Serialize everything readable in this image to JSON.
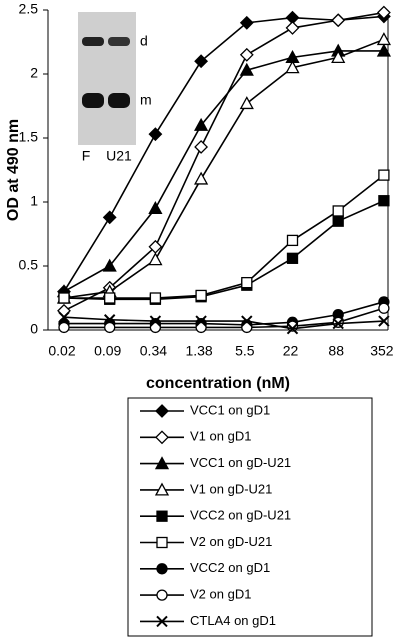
{
  "chart_data": {
    "type": "line",
    "y_label": "OD at 490 nm",
    "x_label": "concentration (nM)",
    "categories": [
      "0.02",
      "0.09",
      "0.34",
      "1.38",
      "5.5",
      "22",
      "88",
      "352"
    ],
    "ylim": [
      0,
      2.5
    ],
    "yticks": [
      0,
      0.5,
      1,
      1.5,
      2,
      2.5
    ],
    "grid": false,
    "legend": "bottom",
    "series": [
      {
        "name": "VCC1 on gD1",
        "color": "#000000",
        "marker": "diamond",
        "filled": true,
        "values": [
          0.3,
          0.88,
          1.53,
          2.1,
          2.4,
          2.44,
          2.42,
          2.45
        ]
      },
      {
        "name": "V1 on gD1",
        "color": "#000000",
        "marker": "diamond",
        "filled": false,
        "values": [
          0.15,
          0.33,
          0.65,
          1.43,
          2.15,
          2.36,
          2.42,
          2.48
        ]
      },
      {
        "name": "VCC1 on gD-U21",
        "color": "#000000",
        "marker": "triangle",
        "filled": true,
        "values": [
          0.3,
          0.5,
          0.95,
          1.6,
          2.03,
          2.13,
          2.18,
          2.18
        ]
      },
      {
        "name": "V1 on gD-U21",
        "color": "#000000",
        "marker": "triangle",
        "filled": false,
        "values": [
          0.25,
          0.3,
          0.55,
          1.18,
          1.77,
          2.05,
          2.13,
          2.27
        ]
      },
      {
        "name": "VCC2 on gD-U21",
        "color": "#000000",
        "marker": "square",
        "filled": true,
        "values": [
          0.25,
          0.24,
          0.24,
          0.26,
          0.35,
          0.56,
          0.85,
          1.01
        ]
      },
      {
        "name": "V2 on gD-U21",
        "color": "#000000",
        "marker": "square",
        "filled": false,
        "values": [
          0.25,
          0.25,
          0.25,
          0.27,
          0.37,
          0.7,
          0.93,
          1.21
        ]
      },
      {
        "name": "VCC2 on gD1",
        "color": "#000000",
        "marker": "circle",
        "filled": true,
        "values": [
          0.05,
          0.05,
          0.05,
          0.05,
          0.04,
          0.06,
          0.12,
          0.22
        ]
      },
      {
        "name": "V2 on gD1",
        "color": "#000000",
        "marker": "circle",
        "filled": false,
        "values": [
          0.02,
          0.02,
          0.02,
          0.02,
          0.02,
          0.03,
          0.06,
          0.17
        ]
      },
      {
        "name": "CTLA4 on gD1",
        "color": "#000000",
        "marker": "x",
        "filled": false,
        "values": [
          0.1,
          0.08,
          0.07,
          0.07,
          0.07,
          0.01,
          0.05,
          0.07
        ]
      }
    ],
    "inset": {
      "band_labels": [
        "d",
        "m"
      ],
      "lane_labels": [
        "F",
        "U21"
      ]
    }
  }
}
